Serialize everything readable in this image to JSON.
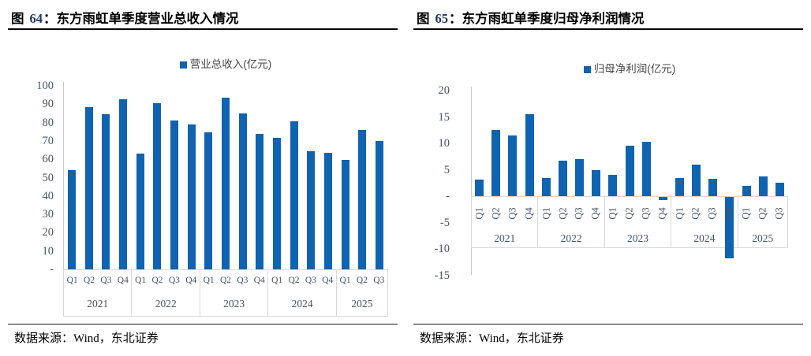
{
  "panels": [
    {
      "figure_word": "图",
      "figure_number": "64",
      "figure_colon": "：",
      "title": "东方雨虹单季度营业总收入情况",
      "source_label": "数据来源：",
      "source_value": "Wind，东北证券"
    },
    {
      "figure_word": "图",
      "figure_number": "65",
      "figure_colon": "：",
      "title": "东方雨虹单季度归母净利润情况",
      "source_label": "数据来源：",
      "source_value": "Wind，东北证券"
    }
  ],
  "colors": {
    "bar_blue": "#0F63B0",
    "figure_number_navy": "#1F3864",
    "axis_label": "#44546A",
    "grid_border": "#D9D9D9"
  },
  "chart_data": [
    {
      "type": "bar",
      "legend": "营业总收入(亿元)",
      "bar_color": "#0F63B0",
      "categories": [
        "Q1",
        "Q2",
        "Q3",
        "Q4",
        "Q1",
        "Q2",
        "Q3",
        "Q4",
        "Q1",
        "Q2",
        "Q3",
        "Q4",
        "Q1",
        "Q2",
        "Q3",
        "Q4",
        "Q1",
        "Q2",
        "Q3"
      ],
      "values": [
        54,
        88.5,
        84.5,
        92.5,
        63,
        90.5,
        81,
        79,
        74.5,
        93.5,
        85,
        74,
        71.5,
        80.5,
        64.5,
        63.5,
        59.5,
        76,
        70
      ],
      "year_groups": [
        {
          "label": "2021",
          "span": 4
        },
        {
          "label": "2022",
          "span": 4
        },
        {
          "label": "2023",
          "span": 4
        },
        {
          "label": "2024",
          "span": 4
        },
        {
          "label": "2025",
          "span": 3
        }
      ],
      "ylim": [
        0,
        100
      ],
      "yticks": [
        {
          "label": "100",
          "value": 100
        },
        {
          "label": "90",
          "value": 90
        },
        {
          "label": "80",
          "value": 80
        },
        {
          "label": "70",
          "value": 70
        },
        {
          "label": "60",
          "value": 60
        },
        {
          "label": "50",
          "value": 50
        },
        {
          "label": "40",
          "value": 40
        },
        {
          "label": "30",
          "value": 30
        },
        {
          "label": "20",
          "value": 20
        },
        {
          "label": "10",
          "value": 10
        },
        {
          "label": "-",
          "value": 0
        }
      ],
      "grid": "off",
      "legend_position": "top-center",
      "rotated_x_labels": false
    },
    {
      "type": "bar",
      "legend": "归母净利润(亿元)",
      "bar_color": "#0F63B0",
      "categories": [
        "Q1",
        "Q2",
        "Q3",
        "Q4",
        "Q1",
        "Q2",
        "Q3",
        "Q4",
        "Q1",
        "Q2",
        "Q3",
        "Q4",
        "Q1",
        "Q2",
        "Q3",
        "Q4",
        "Q1",
        "Q2",
        "Q3"
      ],
      "values": [
        3.2,
        12.5,
        11.5,
        15.5,
        3.4,
        6.7,
        7.0,
        4.9,
        4.0,
        9.5,
        10.3,
        -0.6,
        3.5,
        6.0,
        3.3,
        -11.6,
        1.9,
        3.7,
        2.6
      ],
      "year_groups": [
        {
          "label": "2021",
          "span": 4
        },
        {
          "label": "2022",
          "span": 4
        },
        {
          "label": "2023",
          "span": 4
        },
        {
          "label": "2024",
          "span": 4
        },
        {
          "label": "2025",
          "span": 3
        }
      ],
      "ylim": [
        -15,
        20
      ],
      "yticks": [
        {
          "label": "20",
          "value": 20
        },
        {
          "label": "15",
          "value": 15
        },
        {
          "label": "10",
          "value": 10
        },
        {
          "label": "5",
          "value": 5
        },
        {
          "label": "-",
          "value": 0
        },
        {
          "label": "-5",
          "value": -5
        },
        {
          "label": "-10",
          "value": -10
        },
        {
          "label": "-15",
          "value": -15
        }
      ],
      "grid": "off",
      "legend_position": "top-center",
      "rotated_x_labels": true
    }
  ]
}
